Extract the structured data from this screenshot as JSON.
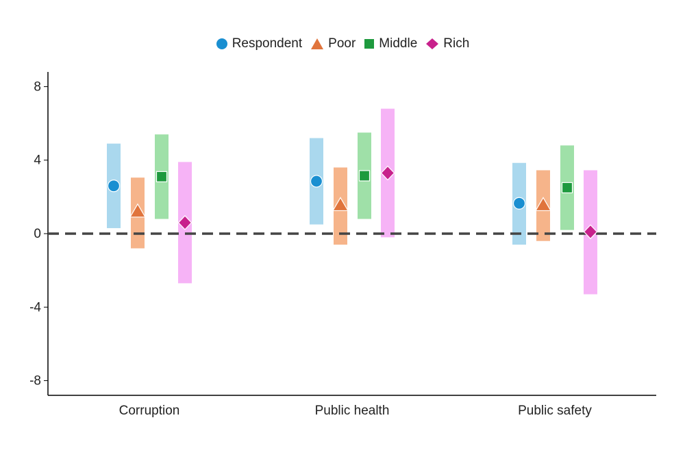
{
  "chart_data": {
    "type": "dot-interval",
    "categories": [
      "Corruption",
      "Public health",
      "Public safety"
    ],
    "series": [
      {
        "name": "Respondent",
        "marker": "circle",
        "color": "#1a8fd1",
        "band_color": "#aad8ee",
        "values": [
          2.6,
          2.85,
          1.65
        ],
        "lower": [
          0.3,
          0.5,
          -0.6
        ],
        "upper": [
          4.9,
          5.2,
          3.85
        ]
      },
      {
        "name": "Poor",
        "marker": "triangle",
        "color": "#e0743c",
        "band_color": "#f6b48a",
        "values": [
          1.2,
          1.55,
          1.55
        ],
        "lower": [
          -0.8,
          -0.6,
          -0.4
        ],
        "upper": [
          3.05,
          3.6,
          3.45
        ]
      },
      {
        "name": "Middle",
        "marker": "square",
        "color": "#1e9a3e",
        "band_color": "#9fe0a8",
        "values": [
          3.1,
          3.15,
          2.5
        ],
        "lower": [
          0.8,
          0.8,
          0.2
        ],
        "upper": [
          5.4,
          5.5,
          4.8
        ]
      },
      {
        "name": "Rich",
        "marker": "diamond",
        "color": "#c8218c",
        "band_color": "#f6b3f6",
        "values": [
          0.6,
          3.3,
          0.1
        ],
        "lower": [
          -2.7,
          -0.2,
          -3.3
        ],
        "upper": [
          3.9,
          6.8,
          3.45
        ]
      }
    ],
    "yticks": [
      8,
      4,
      0,
      -4,
      -8
    ],
    "ylim": [
      -8.8,
      8.8
    ],
    "reference_line": 0,
    "legend_position": "top-center",
    "title": "",
    "xlabel": "",
    "ylabel": ""
  }
}
